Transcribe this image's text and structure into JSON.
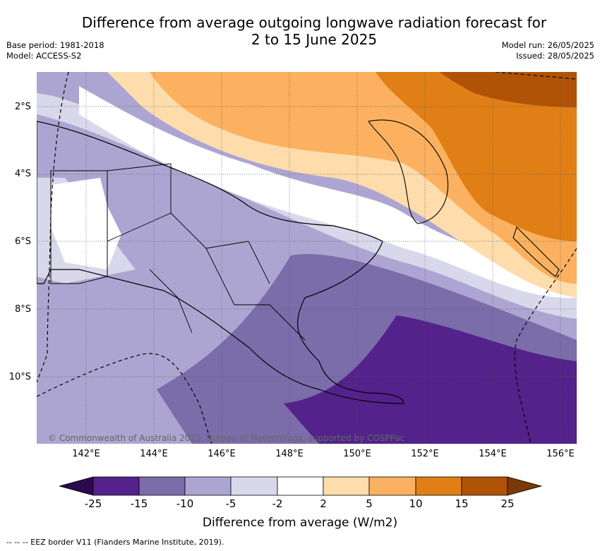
{
  "title": {
    "line1": "Difference from average outgoing longwave radiation forecast for",
    "line2": "2 to 15 June 2025"
  },
  "meta_left": {
    "base_period": "Base period: 1981-2018",
    "model": "Model: ACCESS-S2"
  },
  "meta_right": {
    "model_run": "Model run: 26/05/2025",
    "issued": "Issued: 28/05/2025"
  },
  "map": {
    "lat_labels": [
      "2°S",
      "4°S",
      "6°S",
      "8°S",
      "10°S"
    ],
    "lon_labels": [
      "142°E",
      "144°E",
      "146°E",
      "148°E",
      "150°E",
      "152°E",
      "154°E",
      "156°E"
    ],
    "copyright": "© Commonwealth of Australia 2025, Bureau of Meteorology, supported by COSPPac",
    "colors": {
      "lt_minus25": "#2b0a4e",
      "m25_m15": "#53228a",
      "m15_m10": "#7b6caa",
      "m10_m5": "#ada5d1",
      "m5_m2": "#d9d8eb",
      "m2_2": "#ffffff",
      "p2_5": "#fedcac",
      "p5_10": "#fbb15f",
      "p10_15": "#e07f16",
      "p15_25": "#b05306",
      "gt_25": "#7a3a08"
    }
  },
  "colorbar": {
    "ticks": [
      "-25",
      "-15",
      "-10",
      "-5",
      "-2",
      "2",
      "5",
      "10",
      "15",
      "25"
    ],
    "label": "Difference from average (W/m2)"
  },
  "eez_note": "--  --  -- EEZ border V11 (Flanders Marine Institute, 2019)."
}
